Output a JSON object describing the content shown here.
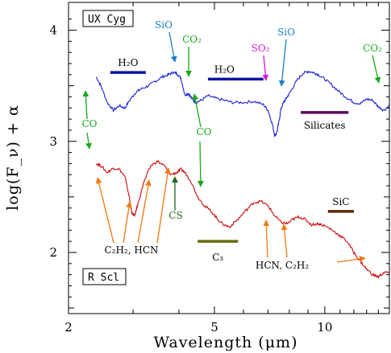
{
  "chart_data": {
    "type": "line",
    "title": "",
    "xlabel": "Wavelength (μm)",
    "ylabel": "log(F_ν) + α",
    "x_scale": "log",
    "xlim": [
      2.0,
      15.0
    ],
    "ylim": [
      1.45,
      4.25
    ],
    "x_ticks": [
      2,
      5,
      10
    ],
    "y_ticks": [
      2,
      3,
      4
    ],
    "series": [
      {
        "name": "UX Cyg",
        "color": "#1a22d8",
        "x": [
          2.38,
          2.45,
          2.55,
          2.65,
          2.75,
          2.85,
          2.95,
          3.05,
          3.15,
          3.3,
          3.45,
          3.6,
          3.75,
          3.85,
          3.95,
          4.05,
          4.15,
          4.25,
          4.35,
          4.45,
          4.6,
          4.8,
          5.0,
          5.3,
          5.6,
          6.0,
          6.4,
          6.8,
          7.0,
          7.2,
          7.3,
          7.4,
          7.5,
          7.6,
          7.75,
          7.9,
          8.1,
          8.4,
          8.7,
          9.0,
          9.3,
          9.6,
          10.0,
          10.5,
          11.0,
          11.5,
          12.0,
          12.5,
          13.0,
          13.5,
          14.0,
          14.5,
          15.0
        ],
        "y": [
          3.58,
          3.5,
          3.35,
          3.28,
          3.32,
          3.3,
          3.38,
          3.44,
          3.47,
          3.5,
          3.54,
          3.58,
          3.6,
          3.62,
          3.61,
          3.57,
          3.42,
          3.43,
          3.38,
          3.35,
          3.37,
          3.41,
          3.39,
          3.37,
          3.35,
          3.35,
          3.36,
          3.33,
          3.28,
          3.15,
          3.05,
          3.08,
          3.18,
          3.3,
          3.36,
          3.4,
          3.46,
          3.55,
          3.61,
          3.63,
          3.62,
          3.6,
          3.56,
          3.5,
          3.44,
          3.39,
          3.35,
          3.34,
          3.38,
          3.37,
          3.31,
          3.28,
          3.32
        ]
      },
      {
        "name": "R Scl",
        "color": "#cc0a0a",
        "x": [
          2.38,
          2.45,
          2.55,
          2.65,
          2.75,
          2.85,
          2.92,
          2.98,
          3.03,
          3.1,
          3.2,
          3.35,
          3.5,
          3.65,
          3.8,
          3.95,
          4.05,
          4.15,
          4.3,
          4.5,
          4.7,
          4.9,
          5.1,
          5.3,
          5.5,
          5.8,
          6.1,
          6.4,
          6.7,
          7.0,
          7.3,
          7.6,
          7.9,
          8.2,
          8.5,
          8.8,
          9.2,
          9.6,
          10.0,
          10.5,
          11.0,
          11.5,
          12.0,
          12.5,
          13.0,
          13.5,
          14.0,
          14.5,
          15.0
        ],
        "y": [
          2.8,
          2.78,
          2.72,
          2.76,
          2.75,
          2.68,
          2.52,
          2.35,
          2.33,
          2.45,
          2.62,
          2.78,
          2.82,
          2.78,
          2.7,
          2.72,
          2.75,
          2.72,
          2.65,
          2.5,
          2.42,
          2.37,
          2.3,
          2.25,
          2.23,
          2.3,
          2.38,
          2.45,
          2.46,
          2.42,
          2.33,
          2.27,
          2.26,
          2.3,
          2.32,
          2.3,
          2.25,
          2.26,
          2.24,
          2.2,
          2.15,
          2.1,
          2.0,
          1.92,
          1.85,
          1.8,
          1.78,
          1.82,
          1.82
        ]
      }
    ],
    "band_bars": [
      {
        "label": "H₂O",
        "x0": 2.6,
        "x1": 3.25,
        "y": 3.62,
        "color": "#0a14a0"
      },
      {
        "label": "H₂O",
        "x0": 4.8,
        "x1": 6.8,
        "y": 3.56,
        "color": "#0a14a0"
      },
      {
        "label": "Silicates",
        "x0": 8.6,
        "x1": 11.6,
        "y": 3.26,
        "color": "#5a0a5a"
      },
      {
        "label": "C₃",
        "x0": 4.5,
        "x1": 5.8,
        "y": 2.1,
        "color": "#6b6b10"
      },
      {
        "label": "SiC",
        "x0": 10.2,
        "x1": 12.0,
        "y": 2.37,
        "color": "#5a2a08"
      }
    ],
    "annotations": [
      {
        "label": "SiO",
        "color": "#1a7fc8"
      },
      {
        "label": "CO₂",
        "color": "#1aa81a"
      },
      {
        "label": "SO₂",
        "color": "#d81ad8"
      },
      {
        "label": "SiO",
        "color": "#1a7fc8"
      },
      {
        "label": "CO₂",
        "color": "#1aa81a"
      },
      {
        "label": "CO",
        "color": "#1aa81a"
      },
      {
        "label": "CO",
        "color": "#1aa81a"
      },
      {
        "label": "CS",
        "color": "#1a6a1a"
      },
      {
        "label": "C₂H₂, HCN",
        "color": "#f07810"
      },
      {
        "label": "HCN, C₂H₂",
        "color": "#f07810"
      }
    ],
    "star_labels": [
      "UX Cyg",
      "R Scl"
    ],
    "grid": false
  }
}
